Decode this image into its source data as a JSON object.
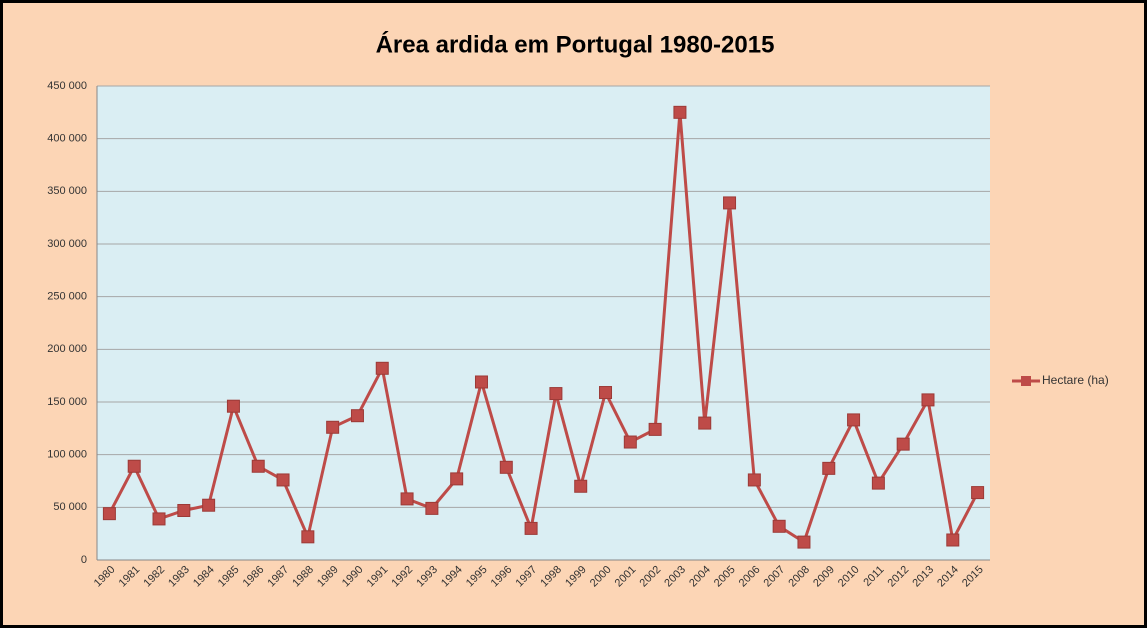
{
  "chart_data": {
    "type": "line",
    "title": "Área ardida em Portugal 1980-2015",
    "categories": [
      "1980",
      "1981",
      "1982",
      "1983",
      "1984",
      "1985",
      "1986",
      "1987",
      "1988",
      "1989",
      "1990",
      "1991",
      "1992",
      "1993",
      "1994",
      "1995",
      "1996",
      "1997",
      "1998",
      "1999",
      "2000",
      "2001",
      "2002",
      "2003",
      "2004",
      "2005",
      "2006",
      "2007",
      "2008",
      "2009",
      "2010",
      "2011",
      "2012",
      "2013",
      "2014",
      "2015"
    ],
    "series": [
      {
        "name": "Hectare (ha)",
        "color": "#be4b48",
        "values": [
          44000,
          89000,
          39000,
          47000,
          52000,
          146000,
          89000,
          76000,
          22000,
          126000,
          137000,
          182000,
          58000,
          49000,
          77000,
          169000,
          88000,
          30000,
          158000,
          70000,
          159000,
          112000,
          124000,
          425000,
          130000,
          339000,
          76000,
          32000,
          17000,
          87000,
          133000,
          73000,
          110000,
          152000,
          19000,
          64000
        ]
      }
    ],
    "ylim": [
      0,
      450000
    ],
    "yticks": [
      0,
      {
        "value": 50000,
        "label": "50 000"
      },
      {
        "value": 100000,
        "label": "100 000"
      },
      {
        "value": 150000,
        "label": "150 000"
      },
      {
        "value": 200000,
        "label": "200 000"
      },
      {
        "value": 250000,
        "label": "250 000"
      },
      {
        "value": 300000,
        "label": "300 000"
      },
      {
        "value": 350000,
        "label": "350 000"
      },
      {
        "value": 400000,
        "label": "400 000"
      },
      {
        "value": 450000,
        "label": "450 000"
      }
    ],
    "grid": true,
    "legend": "right"
  }
}
